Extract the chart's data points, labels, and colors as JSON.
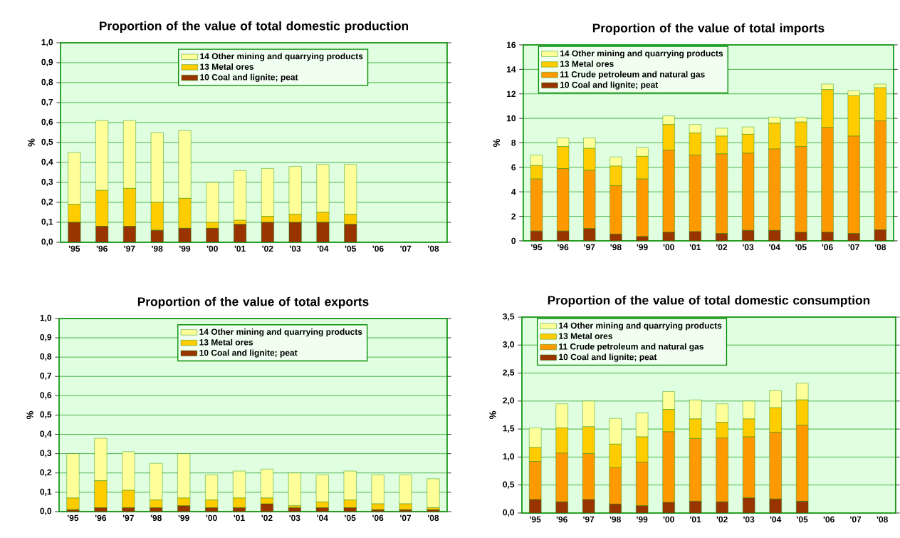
{
  "chart_data": [
    {
      "type": "bar",
      "stacked": true,
      "title": "Proportion of the value of total domestic production",
      "ylabel": "%",
      "categories": [
        "'95",
        "'96",
        "'97",
        "'98",
        "'99",
        "'00",
        "'01",
        "'02",
        "'03",
        "'04",
        "'05",
        "'06",
        "'07",
        "'08"
      ],
      "ylim": [
        0,
        1
      ],
      "yticks": [
        {
          "value": 0,
          "label": "0,0"
        },
        {
          "value": 0.1,
          "label": "0,1"
        },
        {
          "value": 0.2,
          "label": "0,2"
        },
        {
          "value": 0.3,
          "label": "0,3"
        },
        {
          "value": 0.4,
          "label": "0,4"
        },
        {
          "value": 0.5,
          "label": "0,5"
        },
        {
          "value": 0.6,
          "label": "0,6"
        },
        {
          "value": 0.7,
          "label": "0,7"
        },
        {
          "value": 0.8,
          "label": "0,8"
        },
        {
          "value": 0.9,
          "label": "0,9"
        },
        {
          "value": 1,
          "label": "1,0"
        }
      ],
      "grid": "y",
      "legend": "top",
      "series": [
        {
          "name": "10 Coal and lignite; peat",
          "color": "#993300",
          "values": [
            0.1,
            0.08,
            0.08,
            0.06,
            0.07,
            0.07,
            0.09,
            0.1,
            0.1,
            0.1,
            0.09,
            null,
            null,
            null
          ]
        },
        {
          "name": "13 Metal ores",
          "color": "#ffcc00",
          "values": [
            0.09,
            0.18,
            0.19,
            0.14,
            0.15,
            0.03,
            0.02,
            0.03,
            0.04,
            0.05,
            0.05,
            null,
            null,
            null
          ]
        },
        {
          "name": "14 Other mining and quarrying products",
          "color": "#ffff99",
          "values": [
            0.26,
            0.35,
            0.34,
            0.35,
            0.34,
            0.2,
            0.25,
            0.24,
            0.24,
            0.24,
            0.25,
            null,
            null,
            null
          ]
        }
      ]
    },
    {
      "type": "bar",
      "stacked": true,
      "title": "Proportion of the value of total imports",
      "ylabel": "%",
      "categories": [
        "'95",
        "'96",
        "'97",
        "'98",
        "'99",
        "'00",
        "'01",
        "'02",
        "'03",
        "'04",
        "'05",
        "'06",
        "'07",
        "'08"
      ],
      "ylim": [
        0,
        16
      ],
      "yticks": [
        0,
        2,
        4,
        6,
        8,
        10,
        12,
        14,
        16
      ],
      "grid": "y",
      "legend": "top left",
      "series": [
        {
          "name": "10 Coal and lignite; peat",
          "color": "#993300",
          "values": [
            0.8,
            0.8,
            1.0,
            0.55,
            0.35,
            0.7,
            0.75,
            0.6,
            0.85,
            0.85,
            0.7,
            0.7,
            0.6,
            0.9
          ]
        },
        {
          "name": "11 Crude petroleum and natural gas",
          "color": "#ff9900",
          "values": [
            4.25,
            5.1,
            4.75,
            3.95,
            4.7,
            6.7,
            6.25,
            6.5,
            6.3,
            6.65,
            7.0,
            8.55,
            7.95,
            8.9
          ]
        },
        {
          "name": "13 Metal ores",
          "color": "#ffcc00",
          "values": [
            1.1,
            1.8,
            1.8,
            1.6,
            1.85,
            2.1,
            1.8,
            1.45,
            1.55,
            2.1,
            2.0,
            3.1,
            3.3,
            2.7
          ]
        },
        {
          "name": "14 Other mining and quarrying products",
          "color": "#ffff99",
          "values": [
            0.85,
            0.7,
            0.85,
            0.75,
            0.7,
            0.7,
            0.7,
            0.65,
            0.6,
            0.5,
            0.4,
            0.45,
            0.4,
            0.3
          ]
        }
      ]
    },
    {
      "type": "bar",
      "stacked": true,
      "title": "Proportion of the value of total exports",
      "ylabel": "%",
      "categories": [
        "'95",
        "'96",
        "'97",
        "'98",
        "'99",
        "'00",
        "'01",
        "'02",
        "'03",
        "'04",
        "'05",
        "'06",
        "'07",
        "'08"
      ],
      "ylim": [
        0,
        1
      ],
      "yticks": [
        {
          "value": 0,
          "label": "0,0"
        },
        {
          "value": 0.1,
          "label": "0,1"
        },
        {
          "value": 0.2,
          "label": "0,2"
        },
        {
          "value": 0.3,
          "label": "0,3"
        },
        {
          "value": 0.4,
          "label": "0,4"
        },
        {
          "value": 0.5,
          "label": "0,5"
        },
        {
          "value": 0.6,
          "label": "0,6"
        },
        {
          "value": 0.7,
          "label": "0,7"
        },
        {
          "value": 0.8,
          "label": "0,8"
        },
        {
          "value": 0.9,
          "label": "0,9"
        },
        {
          "value": 1,
          "label": "1,0"
        }
      ],
      "grid": "y",
      "legend": "top",
      "series": [
        {
          "name": "10 Coal and lignite; peat",
          "color": "#993300",
          "values": [
            0.01,
            0.02,
            0.02,
            0.02,
            0.03,
            0.02,
            0.02,
            0.04,
            0.02,
            0.02,
            0.02,
            0.01,
            0.01,
            0.01
          ]
        },
        {
          "name": "13 Metal ores",
          "color": "#ffcc00",
          "values": [
            0.06,
            0.14,
            0.09,
            0.04,
            0.04,
            0.04,
            0.05,
            0.03,
            0.01,
            0.03,
            0.04,
            0.03,
            0.03,
            0.01
          ]
        },
        {
          "name": "14 Other mining and quarrying products",
          "color": "#ffff99",
          "values": [
            0.23,
            0.22,
            0.2,
            0.19,
            0.23,
            0.13,
            0.14,
            0.15,
            0.17,
            0.14,
            0.15,
            0.15,
            0.15,
            0.15
          ]
        }
      ]
    },
    {
      "type": "bar",
      "stacked": true,
      "title": "Proportion of the value of total domestic consumption",
      "ylabel": "%",
      "categories": [
        "'95",
        "'96",
        "'97",
        "'98",
        "'99",
        "'00",
        "'01",
        "'02",
        "'03",
        "'04",
        "'05",
        "'06",
        "'07",
        "'08"
      ],
      "ylim": [
        0,
        3.5
      ],
      "yticks": [
        {
          "value": 0,
          "label": "0,0"
        },
        {
          "value": 0.5,
          "label": "0,5"
        },
        {
          "value": 1,
          "label": "1,0"
        },
        {
          "value": 1.5,
          "label": "1,5"
        },
        {
          "value": 2,
          "label": "2,0"
        },
        {
          "value": 2.5,
          "label": "2,5"
        },
        {
          "value": 3,
          "label": "3,0"
        },
        {
          "value": 3.5,
          "label": "3,5"
        }
      ],
      "grid": "y",
      "legend": "top left",
      "series": [
        {
          "name": "10 Coal and lignite; peat",
          "color": "#993300",
          "values": [
            0.24,
            0.2,
            0.24,
            0.16,
            0.13,
            0.19,
            0.21,
            0.2,
            0.27,
            0.25,
            0.21,
            null,
            null,
            null
          ]
        },
        {
          "name": "11 Crude petroleum and natural gas",
          "color": "#ff9900",
          "values": [
            0.68,
            0.87,
            0.82,
            0.65,
            0.78,
            1.26,
            1.12,
            1.14,
            1.09,
            1.19,
            1.36,
            null,
            null,
            null
          ]
        },
        {
          "name": "13 Metal ores",
          "color": "#ffcc00",
          "values": [
            0.25,
            0.45,
            0.48,
            0.42,
            0.45,
            0.4,
            0.35,
            0.28,
            0.32,
            0.44,
            0.45,
            null,
            null,
            null
          ]
        },
        {
          "name": "14 Other mining and quarrying products",
          "color": "#ffff99",
          "values": [
            0.35,
            0.43,
            0.46,
            0.46,
            0.43,
            0.32,
            0.34,
            0.33,
            0.32,
            0.31,
            0.3,
            null,
            null,
            null
          ]
        }
      ]
    }
  ]
}
